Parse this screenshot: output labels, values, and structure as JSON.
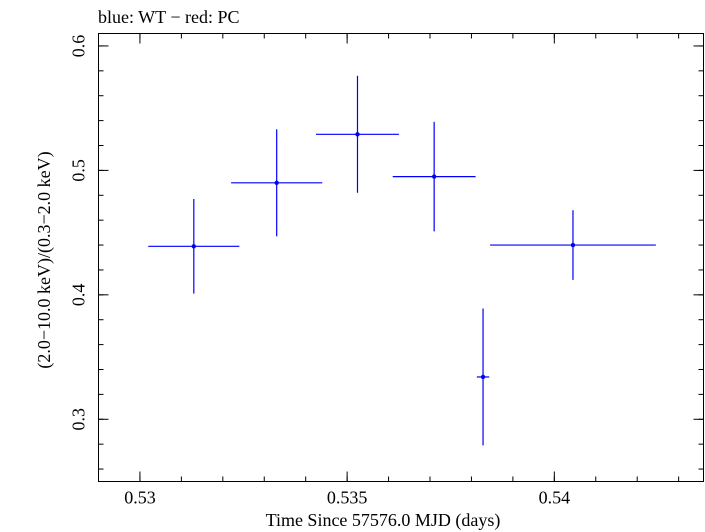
{
  "chart_data": {
    "type": "scatter",
    "title": "blue: WT − red: PC",
    "xlabel": "Time Since 57576.0 MJD (days)",
    "ylabel": "(2.0−10.0 keV)/(0.3−2.0 keV)",
    "xlim": [
      0.529,
      0.5436
    ],
    "ylim": [
      0.25,
      0.61
    ],
    "x_ticks": [
      0.53,
      0.535,
      0.54
    ],
    "x_tick_labels": [
      "0.53",
      "0.535",
      "0.54"
    ],
    "y_ticks": [
      0.3,
      0.4,
      0.5,
      0.6
    ],
    "y_tick_labels": [
      "0.3",
      "0.4",
      "0.5",
      "0.6"
    ],
    "grid": false,
    "legend": "none",
    "series": [
      {
        "color": "#0000ff",
        "points": [
          {
            "x": 0.5313,
            "y": 0.439,
            "xerr_low": 0.0011,
            "xerr_high": 0.0011,
            "yerr_low": 0.038,
            "yerr_high": 0.038
          },
          {
            "x": 0.5333,
            "y": 0.49,
            "xerr_low": 0.0011,
            "xerr_high": 0.0011,
            "yerr_low": 0.043,
            "yerr_high": 0.043
          },
          {
            "x": 0.53525,
            "y": 0.529,
            "xerr_low": 0.001,
            "xerr_high": 0.001,
            "yerr_low": 0.047,
            "yerr_high": 0.047
          },
          {
            "x": 0.5371,
            "y": 0.495,
            "xerr_low": 0.001,
            "xerr_high": 0.001,
            "yerr_low": 0.044,
            "yerr_high": 0.044
          },
          {
            "x": 0.53828,
            "y": 0.334,
            "xerr_low": 0.00015,
            "xerr_high": 0.00015,
            "yerr_low": 0.055,
            "yerr_high": 0.055
          },
          {
            "x": 0.54045,
            "y": 0.44,
            "xerr_low": 0.002,
            "xerr_high": 0.002,
            "yerr_low": 0.028,
            "yerr_high": 0.028
          }
        ]
      }
    ]
  }
}
